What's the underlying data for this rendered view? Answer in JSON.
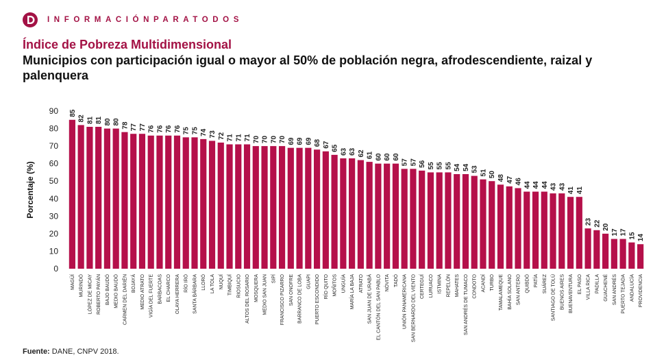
{
  "brand": {
    "logo_icon": "informacion-para-todos-logo-icon",
    "tagline": "INFORMACIÓNPARATODOS"
  },
  "header": {
    "title": "Índice de Pobreza Multidimensional",
    "subtitle": "Municipios con participación igual o mayor al 50% de población negra, afrodescendiente, raizal y palenquera"
  },
  "source": {
    "label": "Fuente:",
    "text": " DANE, CNPV 2018."
  },
  "colors": {
    "bar": "#b5104a",
    "accent": "#a31245"
  },
  "chart_data": {
    "type": "bar",
    "title": "",
    "ylabel": "Porcentaje (%)",
    "xlabel": "",
    "ylim": [
      0,
      90
    ],
    "yticks": [
      0,
      10,
      20,
      30,
      40,
      50,
      60,
      70,
      80,
      90
    ],
    "grid": false,
    "categories": [
      "MAGÜÍ",
      "MURINDÓ",
      "LÓPEZ DE MICAY",
      "ROBERTO PAYÁN",
      "BAJO BAUDÓ",
      "MEDIO BAUDÓ",
      "CARMEN DEL DARIÉN",
      "BOJAYÁ",
      "MEDIO ATRATO",
      "VIGÍA DEL FUERTE",
      "BARBACOAS",
      "EL CHARCO",
      "OLAYA HERRERA",
      "RÍO IRÓ",
      "SANTA BÁRBARA",
      "LLORÓ",
      "LA TOLA",
      "NUQUÍ",
      "TIMBIQUÍ",
      "RIOSUCIO",
      "ALTOS DEL ROSARIO",
      "MOSQUERA",
      "MEDIO SAN JUAN",
      "SIPÍ",
      "FRANCISCO PIZARRO",
      "SAN ONOFRE",
      "BARRANCO DE LOBA",
      "GUAPI",
      "PUERTO ESCONDIDO",
      "RÍO QUITO",
      "MOÑITOS",
      "UNGUÍA",
      "MARÍA LA BAJA",
      "ATRATO",
      "SAN JUAN DE URABÁ",
      "EL CANTÓN DEL SAN PABLO",
      "NÓVITA",
      "TADÓ",
      "UNIÓN PANAMERICANA",
      "SAN BERNARDO DEL VIENTO",
      "CERTEGUÍ",
      "LURUACO",
      "ISTMINA",
      "REPELÓN",
      "MAHATES",
      "SAN ANDRÉS DE TUMACO",
      "CONDOTO",
      "ACANDÍ",
      "TURBO",
      "TAMALAMEQUE",
      "BAHÍA SOLANO",
      "SAN ANTERO",
      "QUIBDÓ",
      "PATÍA",
      "SUÁREZ",
      "SANTIAGO DE TOLÚ",
      "BUENOS AIRES",
      "BUENAVENTURA",
      "EL PASO",
      "VILLA RICA",
      "PADILLA",
      "GUACHENÉ",
      "SAN ANDRÉS",
      "PUERTO TEJADA",
      "ANDALUCÍA",
      "PROVIDENCIA"
    ],
    "values": [
      85,
      82,
      81,
      81,
      80,
      80,
      78,
      77,
      77,
      76,
      76,
      76,
      76,
      75,
      75,
      74,
      73,
      72,
      71,
      71,
      71,
      70,
      70,
      70,
      70,
      69,
      69,
      69,
      68,
      67,
      65,
      63,
      63,
      62,
      61,
      60,
      60,
      60,
      57,
      57,
      56,
      55,
      55,
      55,
      54,
      54,
      53,
      51,
      50,
      48,
      47,
      46,
      44,
      44,
      44,
      43,
      43,
      41,
      41,
      23,
      22,
      20,
      17,
      17,
      15,
      14
    ]
  }
}
